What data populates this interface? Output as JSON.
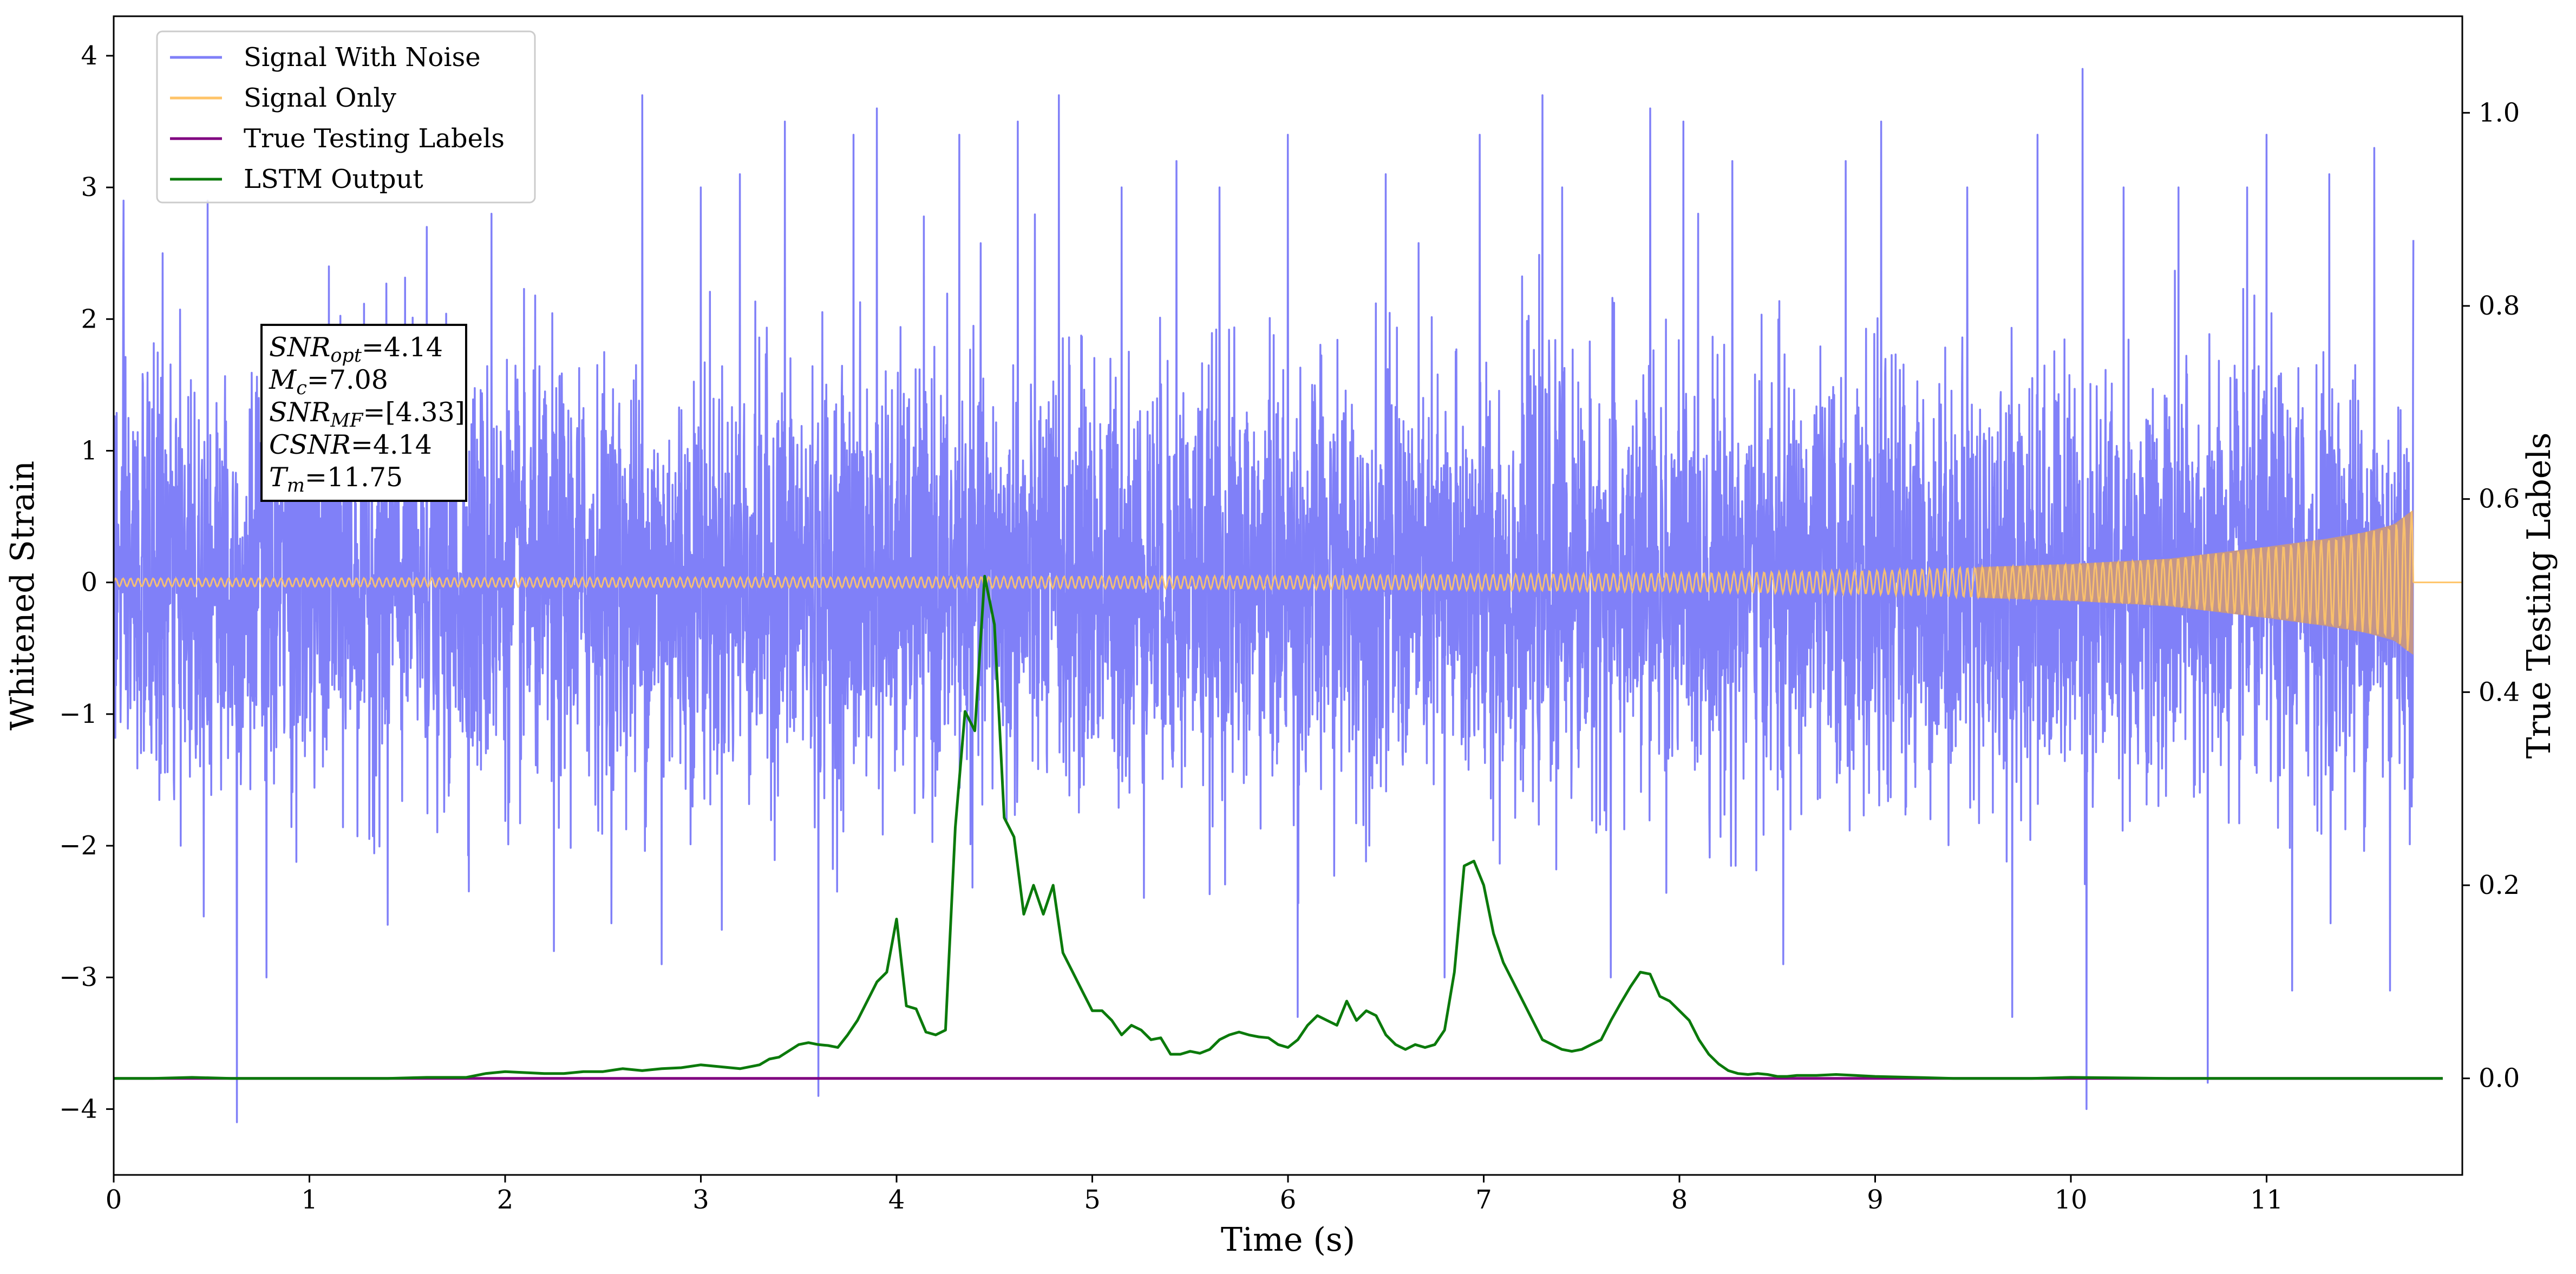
{
  "chart_data": {
    "type": "line",
    "xlabel": "Time (s)",
    "ylabel": "Whitened Strain",
    "y2label": "True Testing Labels",
    "xlim": [
      0,
      12
    ],
    "ylim": [
      -4.5,
      4.3
    ],
    "y2lim": [
      -0.1,
      1.1
    ],
    "xticks": [
      "0",
      "1",
      "2",
      "3",
      "4",
      "5",
      "6",
      "7",
      "8",
      "9",
      "10",
      "11"
    ],
    "yticks": [
      "4",
      "3",
      "2",
      "1",
      "0",
      "−1",
      "−2",
      "−3",
      "−4"
    ],
    "y2ticks": [
      "1.0",
      "0.8",
      "0.6",
      "0.4",
      "0.2",
      "0.0"
    ],
    "legend_placement": "top-left",
    "grid": false,
    "colors": {
      "noise": "#8080f8",
      "signal": "#ffc468",
      "chirp_body": "#c3958a",
      "labels": "#800080",
      "lstm": "#0b7a0b"
    },
    "series": [
      {
        "name": "Signal With Noise",
        "color": "#8080f8",
        "x_range": [
          0,
          11.75
        ],
        "description_values": {
          "typical_min": -2.6,
          "typical_max": 2.6
        },
        "spikes": [
          [
            0.05,
            2.9
          ],
          [
            0.25,
            2.5
          ],
          [
            0.48,
            2.8
          ],
          [
            0.48,
            2.9
          ],
          [
            0.63,
            -4.1
          ],
          [
            0.78,
            -3.0
          ],
          [
            1.1,
            2.4
          ],
          [
            1.4,
            -2.6
          ],
          [
            1.6,
            2.7
          ],
          [
            1.93,
            2.8
          ],
          [
            2.25,
            -2.8
          ],
          [
            2.7,
            3.7
          ],
          [
            2.8,
            -2.9
          ],
          [
            3.0,
            3.0
          ],
          [
            3.2,
            3.1
          ],
          [
            3.43,
            3.5
          ],
          [
            3.6,
            -3.9
          ],
          [
            3.78,
            3.4
          ],
          [
            3.9,
            3.6
          ],
          [
            4.32,
            3.4
          ],
          [
            4.62,
            3.5
          ],
          [
            4.83,
            3.7
          ],
          [
            5.15,
            3.0
          ],
          [
            5.43,
            3.2
          ],
          [
            5.65,
            3.0
          ],
          [
            6.0,
            3.4
          ],
          [
            6.05,
            -3.3
          ],
          [
            6.5,
            3.1
          ],
          [
            6.8,
            -3.0
          ],
          [
            6.98,
            3.4
          ],
          [
            7.3,
            3.7
          ],
          [
            7.4,
            3.0
          ],
          [
            7.65,
            -3.0
          ],
          [
            7.85,
            3.6
          ],
          [
            8.02,
            3.5
          ],
          [
            8.27,
            3.2
          ],
          [
            8.53,
            -2.9
          ],
          [
            8.85,
            3.2
          ],
          [
            9.03,
            3.5
          ],
          [
            9.47,
            3.0
          ],
          [
            9.7,
            -3.3
          ],
          [
            9.83,
            3.4
          ],
          [
            10.06,
            3.9
          ],
          [
            10.08,
            -4.0
          ],
          [
            10.27,
            3.0
          ],
          [
            10.55,
            3.0
          ],
          [
            10.7,
            -3.8
          ],
          [
            10.9,
            3.0
          ],
          [
            11.0,
            3.4
          ],
          [
            11.13,
            -3.1
          ],
          [
            11.32,
            3.1
          ],
          [
            11.55,
            3.3
          ],
          [
            11.63,
            -3.1
          ],
          [
            11.85,
            2.9
          ],
          [
            11.9,
            2.6
          ]
        ]
      },
      {
        "name": "Signal Only",
        "color": "#ffc468",
        "x_range": [
          0,
          11.75
        ],
        "envelope": [
          [
            0,
            0.03
          ],
          [
            2,
            0.035
          ],
          [
            4,
            0.04
          ],
          [
            6,
            0.05
          ],
          [
            8,
            0.07
          ],
          [
            9,
            0.09
          ],
          [
            10,
            0.14
          ],
          [
            10.5,
            0.18
          ],
          [
            11,
            0.27
          ],
          [
            11.3,
            0.33
          ],
          [
            11.5,
            0.38
          ],
          [
            11.65,
            0.44
          ],
          [
            11.72,
            0.52
          ],
          [
            11.75,
            0.55
          ]
        ]
      },
      {
        "name": "True Testing  Labels",
        "color": "#800080",
        "x": [
          0,
          11.9
        ],
        "y": [
          0.0,
          0.0
        ]
      },
      {
        "name": "LSTM Output",
        "color": "#0b7a0b",
        "x": [
          0,
          0.2,
          0.4,
          0.6,
          0.8,
          1.0,
          1.2,
          1.4,
          1.6,
          1.8,
          1.9,
          2.0,
          2.1,
          2.2,
          2.3,
          2.4,
          2.5,
          2.6,
          2.7,
          2.8,
          2.9,
          3.0,
          3.1,
          3.2,
          3.3,
          3.35,
          3.4,
          3.5,
          3.55,
          3.6,
          3.65,
          3.7,
          3.75,
          3.8,
          3.85,
          3.9,
          3.95,
          4.0,
          4.05,
          4.1,
          4.15,
          4.2,
          4.25,
          4.3,
          4.35,
          4.4,
          4.45,
          4.5,
          4.55,
          4.6,
          4.65,
          4.7,
          4.75,
          4.8,
          4.85,
          4.9,
          4.95,
          5.0,
          5.05,
          5.1,
          5.15,
          5.2,
          5.25,
          5.3,
          5.35,
          5.4,
          5.45,
          5.5,
          5.55,
          5.6,
          5.65,
          5.7,
          5.75,
          5.8,
          5.85,
          5.9,
          5.95,
          6.0,
          6.05,
          6.1,
          6.15,
          6.2,
          6.25,
          6.3,
          6.35,
          6.4,
          6.45,
          6.5,
          6.55,
          6.6,
          6.65,
          6.7,
          6.75,
          6.8,
          6.85,
          6.9,
          6.95,
          7.0,
          7.05,
          7.1,
          7.15,
          7.2,
          7.25,
          7.3,
          7.35,
          7.4,
          7.45,
          7.5,
          7.55,
          7.6,
          7.65,
          7.7,
          7.75,
          7.8,
          7.85,
          7.9,
          7.95,
          8.0,
          8.05,
          8.1,
          8.15,
          8.2,
          8.25,
          8.3,
          8.35,
          8.4,
          8.45,
          8.5,
          8.55,
          8.6,
          8.7,
          8.8,
          8.9,
          9.0,
          9.2,
          9.4,
          9.6,
          9.8,
          10.0,
          10.5,
          11.0,
          11.5,
          11.9
        ],
        "y": [
          0.0,
          0.0,
          0.001,
          0.0,
          0.0,
          0.0,
          0.0,
          0.0,
          0.001,
          0.001,
          0.005,
          0.007,
          0.006,
          0.005,
          0.005,
          0.007,
          0.007,
          0.01,
          0.008,
          0.01,
          0.011,
          0.014,
          0.012,
          0.01,
          0.014,
          0.02,
          0.022,
          0.035,
          0.037,
          0.035,
          0.034,
          0.032,
          0.045,
          0.06,
          0.08,
          0.1,
          0.11,
          0.165,
          0.075,
          0.072,
          0.048,
          0.045,
          0.05,
          0.26,
          0.38,
          0.36,
          0.52,
          0.47,
          0.27,
          0.25,
          0.17,
          0.2,
          0.17,
          0.2,
          0.13,
          0.11,
          0.09,
          0.07,
          0.07,
          0.06,
          0.045,
          0.055,
          0.05,
          0.04,
          0.042,
          0.025,
          0.025,
          0.028,
          0.026,
          0.03,
          0.04,
          0.045,
          0.048,
          0.045,
          0.043,
          0.042,
          0.035,
          0.032,
          0.04,
          0.055,
          0.065,
          0.06,
          0.055,
          0.08,
          0.06,
          0.07,
          0.065,
          0.045,
          0.035,
          0.03,
          0.035,
          0.032,
          0.035,
          0.05,
          0.11,
          0.22,
          0.225,
          0.2,
          0.15,
          0.12,
          0.1,
          0.08,
          0.06,
          0.04,
          0.035,
          0.03,
          0.028,
          0.03,
          0.035,
          0.04,
          0.06,
          0.078,
          0.095,
          0.11,
          0.108,
          0.085,
          0.08,
          0.07,
          0.06,
          0.04,
          0.025,
          0.015,
          0.008,
          0.005,
          0.004,
          0.005,
          0.004,
          0.002,
          0.002,
          0.003,
          0.003,
          0.004,
          0.003,
          0.002,
          0.001,
          0.0,
          0.0,
          0.0,
          0.001,
          0.0,
          0.0,
          0.0,
          0.0
        ]
      }
    ],
    "annotation": {
      "lines": [
        {
          "main": "SNR",
          "sub": "opt",
          "value": "=4.14"
        },
        {
          "main": "M",
          "sub": "c",
          "value": "=7.08"
        },
        {
          "main": "SNR",
          "sub": "MF",
          "value": "=[4.33]"
        },
        {
          "main": "CSNR",
          "sub": "",
          "value": "=4.14"
        },
        {
          "main": "T",
          "sub": "m",
          "value": "=11.75"
        }
      ]
    }
  }
}
